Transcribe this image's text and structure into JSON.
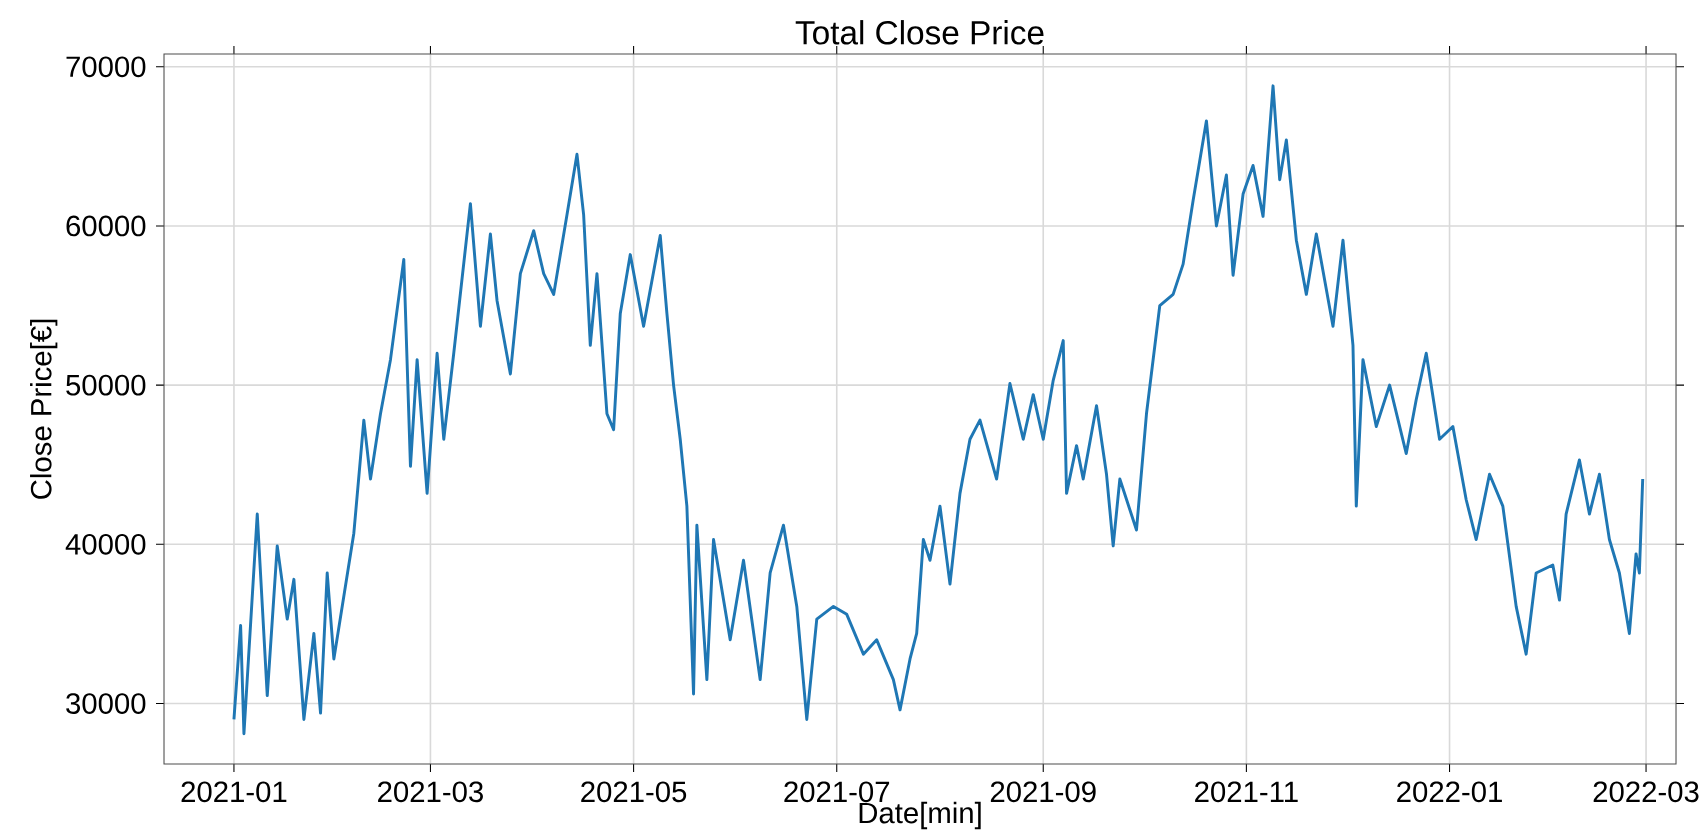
{
  "chart_data": {
    "type": "line",
    "title": "Total Close Price",
    "xlabel": "Date[min]",
    "ylabel": "Close Price[€]",
    "color": "#1f77b4",
    "grid": true,
    "xlim": [
      "2020-12-11",
      "2022-03-10"
    ],
    "xticks": [
      "2021-01",
      "2021-03",
      "2021-05",
      "2021-07",
      "2021-09",
      "2021-11",
      "2022-01",
      "2022-03"
    ],
    "ylim": [
      26200,
      70800
    ],
    "yticks": [
      30000,
      40000,
      50000,
      60000,
      70000
    ],
    "x": [
      "2021-01-01",
      "2021-01-03",
      "2021-01-04",
      "2021-01-08",
      "2021-01-11",
      "2021-01-14",
      "2021-01-17",
      "2021-01-19",
      "2021-01-22",
      "2021-01-25",
      "2021-01-27",
      "2021-01-29",
      "2021-01-31",
      "2021-02-06",
      "2021-02-09",
      "2021-02-11",
      "2021-02-14",
      "2021-02-17",
      "2021-02-21",
      "2021-02-23",
      "2021-02-25",
      "2021-02-28",
      "2021-03-03",
      "2021-03-05",
      "2021-03-08",
      "2021-03-13",
      "2021-03-16",
      "2021-03-19",
      "2021-03-21",
      "2021-03-25",
      "2021-03-28",
      "2021-04-01",
      "2021-04-04",
      "2021-04-07",
      "2021-04-11",
      "2021-04-14",
      "2021-04-16",
      "2021-04-18",
      "2021-04-20",
      "2021-04-23",
      "2021-04-25",
      "2021-04-27",
      "2021-04-30",
      "2021-05-04",
      "2021-05-09",
      "2021-05-11",
      "2021-05-13",
      "2021-05-15",
      "2021-05-17",
      "2021-05-19",
      "2021-05-20",
      "2021-05-23",
      "2021-05-25",
      "2021-05-30",
      "2021-06-03",
      "2021-06-08",
      "2021-06-11",
      "2021-06-15",
      "2021-06-19",
      "2021-06-22",
      "2021-06-25",
      "2021-06-30",
      "2021-07-04",
      "2021-07-09",
      "2021-07-13",
      "2021-07-18",
      "2021-07-20",
      "2021-07-23",
      "2021-07-25",
      "2021-07-27",
      "2021-07-29",
      "2021-08-01",
      "2021-08-04",
      "2021-08-07",
      "2021-08-10",
      "2021-08-13",
      "2021-08-18",
      "2021-08-22",
      "2021-08-26",
      "2021-08-29",
      "2021-09-01",
      "2021-09-04",
      "2021-09-07",
      "2021-09-08",
      "2021-09-11",
      "2021-09-13",
      "2021-09-17",
      "2021-09-20",
      "2021-09-22",
      "2021-09-24",
      "2021-09-29",
      "2021-10-02",
      "2021-10-06",
      "2021-10-10",
      "2021-10-13",
      "2021-10-16",
      "2021-10-20",
      "2021-10-23",
      "2021-10-26",
      "2021-10-28",
      "2021-10-31",
      "2021-11-03",
      "2021-11-06",
      "2021-11-09",
      "2021-11-11",
      "2021-11-13",
      "2021-11-16",
      "2021-11-19",
      "2021-11-22",
      "2021-11-27",
      "2021-11-30",
      "2021-12-03",
      "2021-12-04",
      "2021-12-06",
      "2021-12-10",
      "2021-12-14",
      "2021-12-19",
      "2021-12-22",
      "2021-12-25",
      "2021-12-29",
      "2022-01-02",
      "2022-01-06",
      "2022-01-09",
      "2022-01-13",
      "2022-01-17",
      "2022-01-21",
      "2022-01-24",
      "2022-01-27",
      "2022-02-01",
      "2022-02-03",
      "2022-02-05",
      "2022-02-09",
      "2022-02-12",
      "2022-02-15",
      "2022-02-18",
      "2022-02-21",
      "2022-02-24",
      "2022-02-26",
      "2022-02-27",
      "2022-02-28"
    ],
    "values": [
      29000,
      34900,
      28100,
      41900,
      30500,
      39900,
      35300,
      37800,
      29000,
      34400,
      29400,
      38200,
      32800,
      40700,
      47800,
      44100,
      48200,
      51600,
      57900,
      44900,
      51600,
      43200,
      52000,
      46600,
      52000,
      61400,
      53700,
      59500,
      55300,
      50700,
      57000,
      59700,
      57000,
      55700,
      60700,
      64500,
      60700,
      52500,
      57000,
      48200,
      47200,
      54500,
      58200,
      53700,
      59400,
      54500,
      50000,
      46600,
      42400,
      30600,
      41200,
      31500,
      40300,
      34000,
      39000,
      31500,
      38200,
      41200,
      36100,
      29000,
      35300,
      36100,
      35600,
      33100,
      34000,
      31500,
      29600,
      32800,
      34400,
      40300,
      39000,
      42400,
      37500,
      43200,
      46600,
      47800,
      44100,
      50100,
      46600,
      49400,
      46600,
      50300,
      52800,
      43200,
      46200,
      44100,
      48700,
      44400,
      39900,
      44100,
      40900,
      48200,
      55000,
      55700,
      57600,
      61600,
      66600,
      60000,
      63200,
      56900,
      62000,
      63800,
      60600,
      68800,
      62900,
      65400,
      59100,
      55700,
      59500,
      53700,
      59100,
      52500,
      42400,
      51600,
      47400,
      50000,
      45700,
      49100,
      52000,
      46600,
      47400,
      42800,
      40300,
      44400,
      42400,
      36100,
      33100,
      38200,
      38700,
      36500,
      41900,
      45300,
      41900,
      44400,
      40300,
      38200,
      34400,
      39400,
      38200,
      44100
    ]
  }
}
